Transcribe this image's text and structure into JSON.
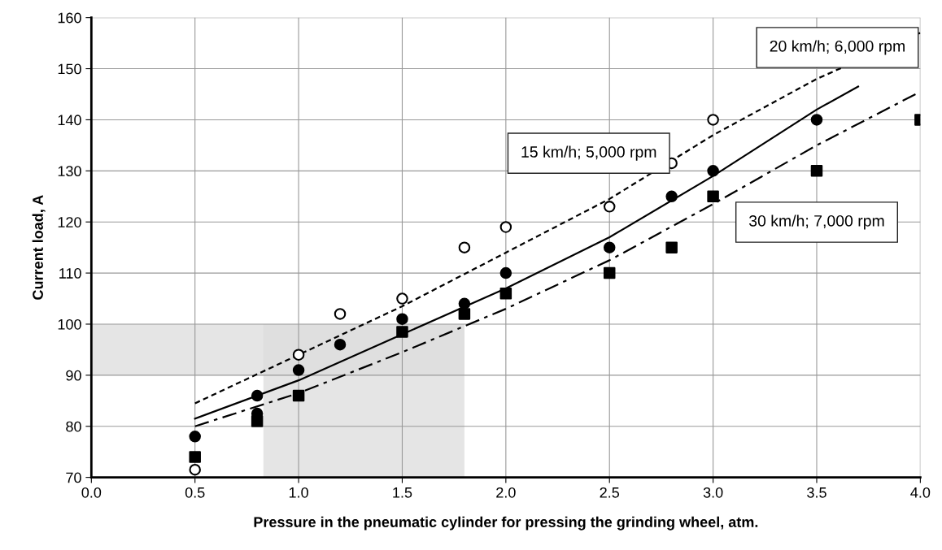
{
  "chart_data": {
    "type": "scatter",
    "xlabel": "Pressure in the pneumatic cylinder for pressing the grinding wheel, atm.",
    "ylabel": "Current load, A",
    "xlim": [
      0.0,
      4.0
    ],
    "ylim": [
      70,
      160
    ],
    "xticks": [
      {
        "value": 0,
        "label": "0.0"
      },
      0.5,
      {
        "value": 1,
        "label": "1.0"
      },
      1.5,
      {
        "value": 2,
        "label": "2.0"
      },
      2.5,
      {
        "value": 3,
        "label": "3.0"
      },
      3.5,
      {
        "value": 4,
        "label": "4.0"
      }
    ],
    "yticks": [
      70,
      80,
      90,
      100,
      110,
      120,
      130,
      140,
      150,
      160
    ],
    "grid": true,
    "bands": [
      {
        "axis": "y",
        "from": 90,
        "to": 100,
        "color": "#dcdcdc"
      },
      {
        "axis": "x",
        "from": 0.83,
        "to": 1.8,
        "color": "#dcdcdc"
      }
    ],
    "series": [
      {
        "type": "line",
        "color": "#000000",
        "line_style": "dashed",
        "x": [
          0.5,
          1.0,
          1.5,
          2.0,
          2.5,
          3.0,
          3.5,
          4.0
        ],
        "values": [
          84.5,
          94,
          103.5,
          114,
          124.5,
          137,
          148,
          157
        ]
      },
      {
        "type": "line",
        "color": "#000000",
        "line_style": "solid",
        "x": [
          0.5,
          1.0,
          1.5,
          2.0,
          2.5,
          3.0,
          3.5,
          3.7
        ],
        "values": [
          81.5,
          89,
          98,
          107,
          117,
          129,
          142,
          146.5
        ]
      },
      {
        "type": "line",
        "color": "#000000",
        "line_style": "dashdot",
        "x": [
          0.5,
          1.0,
          1.5,
          2.0,
          2.5,
          3.0,
          3.5,
          4.0
        ],
        "values": [
          80,
          86.5,
          94.5,
          103,
          112.5,
          123.5,
          135,
          145.5
        ]
      },
      {
        "marker": "circle",
        "color": "#ffffff",
        "x": [
          0.5,
          1.0,
          1.2,
          1.5,
          1.8,
          2.0,
          2.5,
          2.8,
          3.0
        ],
        "values": [
          71.5,
          94,
          102,
          105,
          115,
          119,
          123,
          131.5,
          140
        ]
      },
      {
        "marker": "circle",
        "color": "#000000",
        "x": [
          0.5,
          0.8,
          0.8,
          1.0,
          1.2,
          1.5,
          1.8,
          2.0,
          2.5,
          2.8,
          3.0,
          3.5
        ],
        "values": [
          78,
          86,
          82.5,
          91,
          96,
          101,
          104,
          110,
          115,
          125,
          130,
          140
        ]
      },
      {
        "marker": "square",
        "color": "#000000",
        "x": [
          0.5,
          0.8,
          1.0,
          1.5,
          1.8,
          2.0,
          2.5,
          2.8,
          3.0,
          3.5,
          4.0
        ],
        "values": [
          74,
          81,
          86,
          98.5,
          102,
          106,
          110,
          115,
          125,
          130,
          140
        ]
      }
    ],
    "annotations": [
      "20 km/h; 6,000 rpm",
      "15 km/h; 5,000 rpm",
      "30 km/h; 7,000 rpm"
    ]
  }
}
